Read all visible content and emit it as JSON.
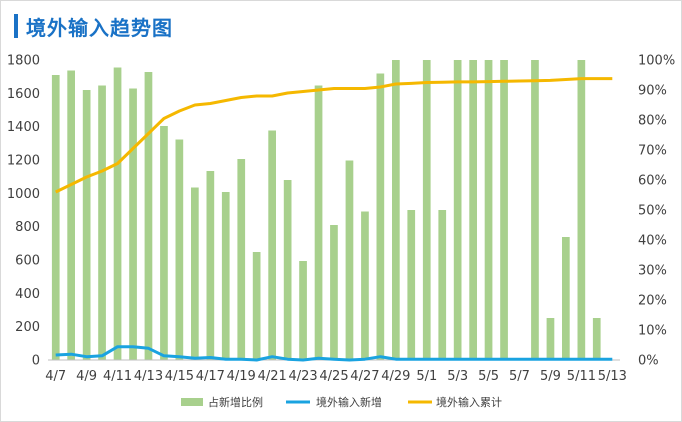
{
  "header": {
    "title": "境外输入趋势图"
  },
  "colors": {
    "title": "#1a72c6",
    "bars": "#a8d08d",
    "new_line": "#1aa3e0",
    "cum_line": "#f5b800"
  },
  "chart_data": {
    "type": "bar",
    "title": "境外输入趋势图",
    "x_tick_labels": [
      "4/7",
      "4/9",
      "4/11",
      "4/13",
      "4/15",
      "4/17",
      "4/19",
      "4/21",
      "4/23",
      "4/25",
      "4/27",
      "4/29",
      "5/1",
      "5/3",
      "5/5",
      "5/7",
      "5/9",
      "5/11",
      "5/13"
    ],
    "categories": [
      "4/7",
      "4/8",
      "4/9",
      "4/10",
      "4/11",
      "4/12",
      "4/13",
      "4/14",
      "4/15",
      "4/16",
      "4/17",
      "4/18",
      "4/19",
      "4/20",
      "4/21",
      "4/22",
      "4/23",
      "4/24",
      "4/25",
      "4/26",
      "4/27",
      "4/28",
      "4/29",
      "4/30",
      "5/1",
      "5/2",
      "5/3",
      "5/4",
      "5/5",
      "5/6",
      "5/7",
      "5/8",
      "5/9",
      "5/10",
      "5/11",
      "5/12",
      "5/13"
    ],
    "y_left": {
      "min": 0,
      "max": 1800,
      "ticks": [
        0,
        200,
        400,
        600,
        800,
        1000,
        1200,
        1400,
        1600,
        1800
      ]
    },
    "y_right": {
      "min": 0,
      "max": 100,
      "ticks": [
        "0%",
        "10%",
        "20%",
        "30%",
        "40%",
        "50%",
        "60%",
        "70%",
        "80%",
        "90%",
        "100%"
      ]
    },
    "grid": false,
    "legend_position": "bottom",
    "series": [
      {
        "name": "占新增比例",
        "type": "bar",
        "axis": "right",
        "unit": "%",
        "values": [
          95,
          96.5,
          90,
          91.5,
          97.5,
          90.5,
          96,
          78,
          73.5,
          57.5,
          63,
          56,
          67,
          36,
          76.5,
          60,
          33,
          91.5,
          45,
          66.5,
          49.5,
          95.5,
          100,
          50,
          100,
          50,
          100,
          100,
          100,
          100,
          0,
          100,
          14,
          41,
          100,
          14,
          0
        ]
      },
      {
        "name": "境外输入新增",
        "type": "line",
        "axis": "left",
        "values": [
          30,
          35,
          20,
          25,
          80,
          80,
          70,
          25,
          20,
          10,
          15,
          5,
          5,
          0,
          20,
          5,
          0,
          10,
          5,
          0,
          5,
          20,
          5,
          5,
          5,
          5,
          5,
          5,
          5,
          5,
          5,
          5,
          5,
          5,
          5,
          5,
          5
        ]
      },
      {
        "name": "境外输入累计",
        "type": "line",
        "axis": "right",
        "unit": "%",
        "values": [
          56,
          58.5,
          61,
          63,
          65.5,
          70.5,
          75.5,
          80.5,
          83,
          85,
          85.5,
          86.5,
          87.5,
          88,
          88,
          89,
          89.5,
          90,
          90.5,
          90.5,
          90.5,
          91,
          92,
          92.2,
          92.5,
          92.6,
          92.7,
          92.7,
          92.8,
          92.9,
          93,
          93.1,
          93.2,
          93.5,
          93.8,
          93.8,
          93.8
        ]
      }
    ]
  }
}
